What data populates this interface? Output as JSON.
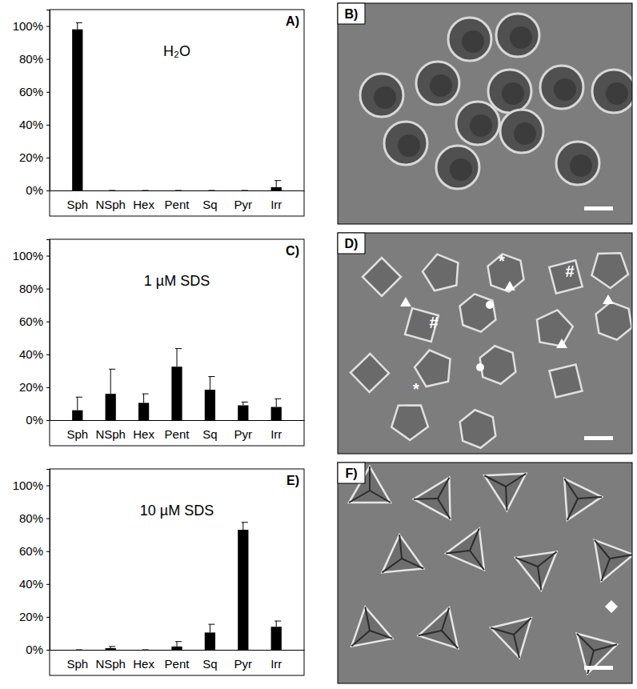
{
  "chart_data": [
    {
      "type": "bar",
      "panel": "A)",
      "title": "H₂O",
      "categories": [
        "Sph",
        "NSph",
        "Hex",
        "Pent",
        "Sq",
        "Pyr",
        "Irr"
      ],
      "values": [
        98,
        0,
        0,
        0,
        0,
        0,
        2
      ],
      "errors": [
        4,
        0,
        0,
        0,
        0,
        0,
        4
      ],
      "color": "#000000",
      "ylim": [
        0,
        110
      ],
      "yticks": [
        {
          "value": 0,
          "label": "0%"
        },
        {
          "value": 20,
          "label": "20%"
        },
        {
          "value": 40,
          "label": "40%"
        },
        {
          "value": 60,
          "label": "60%"
        },
        {
          "value": 80,
          "label": "80%"
        },
        {
          "value": 100,
          "label": "100%"
        }
      ]
    },
    {
      "type": "bar",
      "panel": "C)",
      "title": "1 µM SDS",
      "categories": [
        "Sph",
        "NSph",
        "Hex",
        "Pent",
        "Sq",
        "Pyr",
        "Irr"
      ],
      "values": [
        6,
        16,
        10.5,
        32.5,
        18.5,
        9,
        8
      ],
      "errors": [
        8,
        15,
        5.5,
        11,
        8,
        2,
        5
      ],
      "color": "#000000",
      "ylim": [
        0,
        110
      ],
      "yticks": [
        {
          "value": 0,
          "label": "0%"
        },
        {
          "value": 20,
          "label": "20%"
        },
        {
          "value": 40,
          "label": "40%"
        },
        {
          "value": 60,
          "label": "60%"
        },
        {
          "value": 80,
          "label": "80%"
        },
        {
          "value": 100,
          "label": "100%"
        }
      ]
    },
    {
      "type": "bar",
      "panel": "E)",
      "title": "10 µM SDS",
      "categories": [
        "Sph",
        "NSph",
        "Hex",
        "Pent",
        "Sq",
        "Pyr",
        "Irr"
      ],
      "values": [
        0,
        1,
        0,
        2,
        10.5,
        73,
        14
      ],
      "errors": [
        0,
        1,
        0,
        3,
        5,
        4.5,
        3.5
      ],
      "color": "#000000",
      "ylim": [
        0,
        110
      ],
      "yticks": [
        {
          "value": 0,
          "label": "0%"
        },
        {
          "value": 20,
          "label": "20%"
        },
        {
          "value": 40,
          "label": "40%"
        },
        {
          "value": 60,
          "label": "60%"
        },
        {
          "value": 80,
          "label": "80%"
        },
        {
          "value": 100,
          "label": "100%"
        }
      ]
    }
  ],
  "images": [
    {
      "panel": "B)"
    },
    {
      "panel": "D)",
      "annotations": [
        "*",
        "#",
        "#",
        "*"
      ]
    },
    {
      "panel": "F)"
    }
  ]
}
